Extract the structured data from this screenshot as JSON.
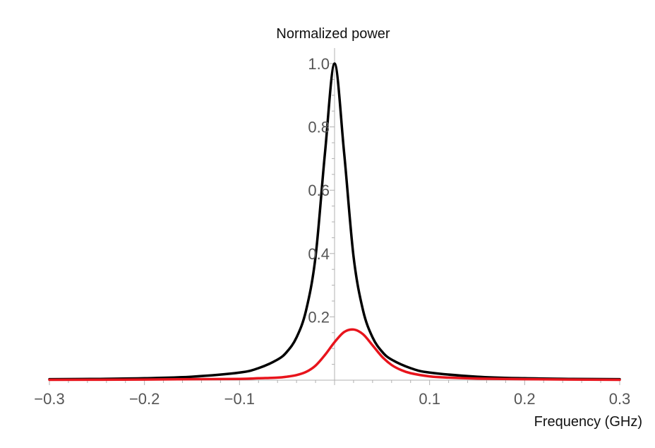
{
  "chart_data": {
    "type": "line",
    "title": "",
    "xlabel": "Frequency (GHz)",
    "ylabel": "Normalized power",
    "xlim": [
      -0.3,
      0.3
    ],
    "ylim": [
      0,
      1.0
    ],
    "x_ticks": [
      -0.3,
      -0.2,
      -0.1,
      0.1,
      0.2,
      0.3
    ],
    "x_tick_labels": [
      "−0.3",
      "−0.2",
      "−0.1",
      "0.1",
      "0.2",
      "0.3"
    ],
    "y_ticks": [
      0.2,
      0.4,
      0.6,
      0.8,
      1.0
    ],
    "y_tick_labels": [
      "0.2",
      "0.4",
      "0.6",
      "0.8",
      "1.0"
    ],
    "grid": false,
    "series": [
      {
        "color": "#000000",
        "x": [
          -0.3,
          -0.25,
          -0.2,
          -0.15,
          -0.1,
          -0.08,
          -0.06,
          -0.05,
          -0.04,
          -0.03,
          -0.02,
          -0.01,
          0.0,
          0.01,
          0.02,
          0.03,
          0.04,
          0.05,
          0.06,
          0.08,
          0.1,
          0.15,
          0.2,
          0.25,
          0.3
        ],
        "values": [
          0.003,
          0.004,
          0.006,
          0.011,
          0.024,
          0.038,
          0.065,
          0.09,
          0.135,
          0.22,
          0.39,
          0.72,
          1.0,
          0.72,
          0.39,
          0.22,
          0.135,
          0.09,
          0.065,
          0.038,
          0.024,
          0.011,
          0.006,
          0.004,
          0.003
        ]
      },
      {
        "color": "#e8141c",
        "x": [
          -0.3,
          -0.2,
          -0.15,
          -0.1,
          -0.08,
          -0.06,
          -0.05,
          -0.04,
          -0.03,
          -0.02,
          -0.01,
          0.0,
          0.01,
          0.02,
          0.03,
          0.04,
          0.05,
          0.06,
          0.07,
          0.08,
          0.1,
          0.12,
          0.15,
          0.2,
          0.3
        ],
        "values": [
          0.001,
          0.002,
          0.003,
          0.004,
          0.006,
          0.008,
          0.011,
          0.016,
          0.026,
          0.046,
          0.08,
          0.12,
          0.152,
          0.16,
          0.145,
          0.11,
          0.074,
          0.048,
          0.032,
          0.022,
          0.012,
          0.008,
          0.005,
          0.003,
          0.001
        ]
      }
    ]
  }
}
